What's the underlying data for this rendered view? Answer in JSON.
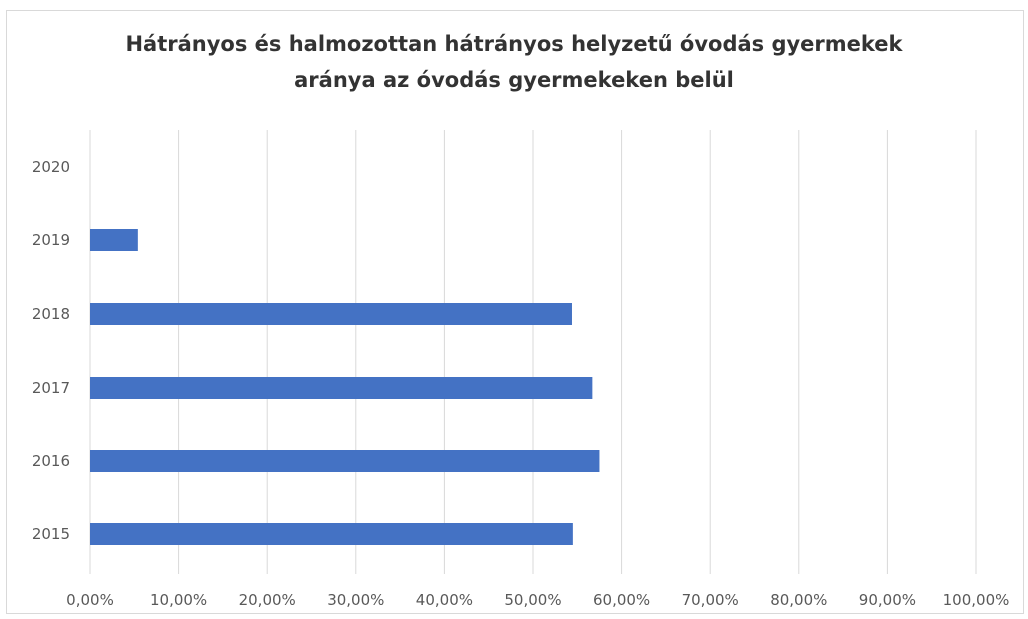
{
  "chart_data": {
    "type": "bar",
    "orientation": "horizontal",
    "title_lines": [
      "Hátrányos és halmozottan hátrányos helyzetű óvodás gyermekek",
      "aránya az óvodás gyermekeken belül"
    ],
    "categories": [
      "2015",
      "2016",
      "2017",
      "2018",
      "2019",
      "2020"
    ],
    "values": [
      0.545,
      0.575,
      0.567,
      0.544,
      0.054,
      0
    ],
    "xlim": [
      0,
      1
    ],
    "x_ticks": [
      0,
      0.1,
      0.2,
      0.3,
      0.4,
      0.5,
      0.6,
      0.7,
      0.8,
      0.9,
      1.0
    ],
    "x_tick_labels": [
      "0,00%",
      "10,00%",
      "20,00%",
      "30,00%",
      "40,00%",
      "50,00%",
      "60,00%",
      "70,00%",
      "80,00%",
      "90,00%",
      "100,00%"
    ],
    "grid": "vertical",
    "legend": "none",
    "bar_color": "#4472c4",
    "grid_color": "#d9d9d9"
  }
}
